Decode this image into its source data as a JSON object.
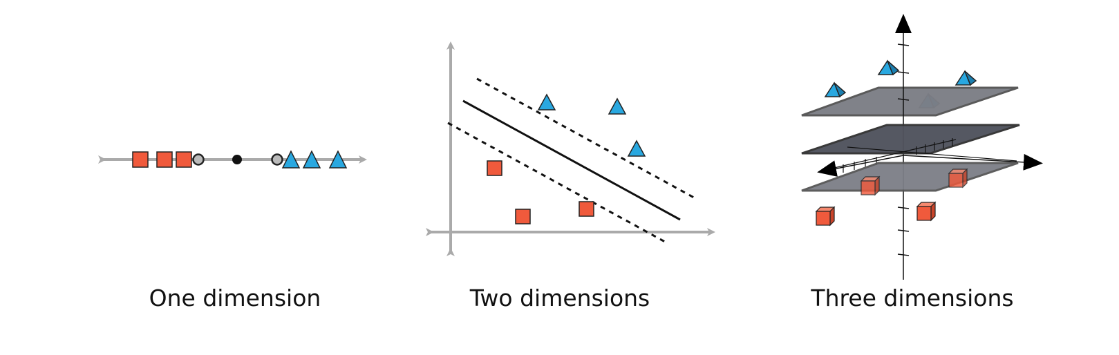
{
  "panels": [
    {
      "id": "one",
      "caption": "One dimension"
    },
    {
      "id": "two",
      "caption": "Two dimensions"
    },
    {
      "id": "three",
      "caption": "Three dimensions"
    }
  ],
  "colors": {
    "square": "#f05a3c",
    "triangle": "#29a8e0",
    "axis": "#aaaaaa",
    "plane_light": "#7c7e86",
    "plane_dark": "#50535d",
    "plane_edge": "#555555",
    "ink": "#111111",
    "support_ring": "#bbbbbb"
  },
  "shapes": {
    "square": "square-marker",
    "triangle": "triangle-marker",
    "cube": "cube-marker",
    "pyramid": "pyramid-marker"
  }
}
